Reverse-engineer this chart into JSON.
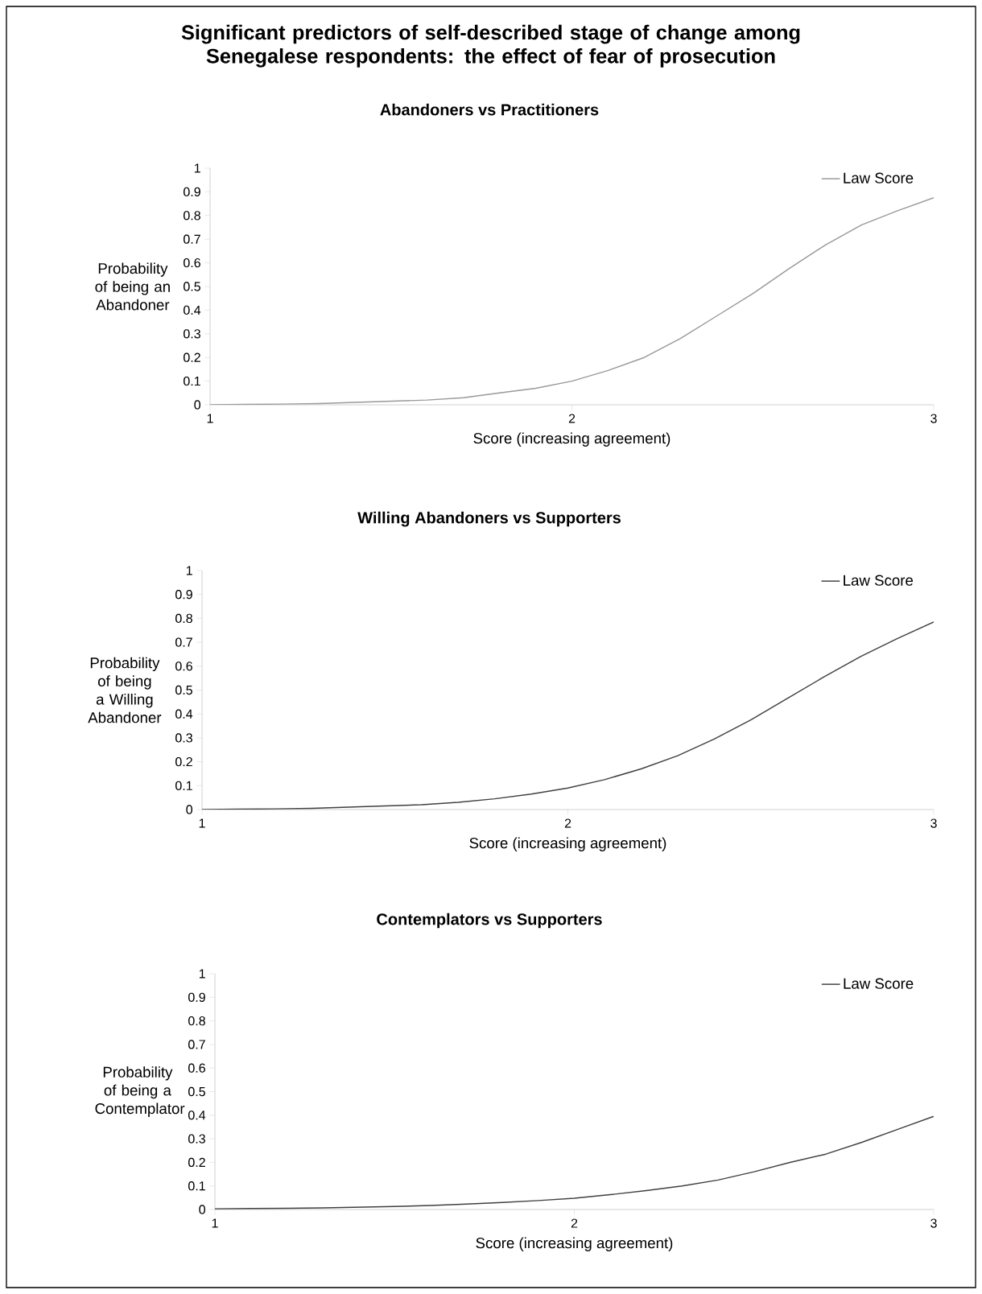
{
  "chart_data": [
    {
      "type": "line",
      "title": "Significant predictors of self-described stage of change among Senegalese respondents:  the effect of fear of prosecution",
      "subtitle": "Abandoners vs Practitioners",
      "xlabel": "Score (increasing agreement)",
      "ylabel": "Probability of being an Abandoner",
      "x": [
        1.0,
        1.1,
        1.2,
        1.3,
        1.4,
        1.5,
        1.6,
        1.7,
        1.8,
        1.9,
        2.0,
        2.1,
        2.2,
        2.3,
        2.4,
        2.5,
        2.6,
        2.7,
        2.8,
        2.9,
        3.0
      ],
      "series": [
        {
          "name": "Law Score",
          "color": "#999999",
          "values": [
            0,
            0.002,
            0.003,
            0.005,
            0.01,
            0.015,
            0.02,
            0.03,
            0.05,
            0.07,
            0.1,
            0.145,
            0.2,
            0.28,
            0.375,
            0.47,
            0.575,
            0.675,
            0.76,
            0.82,
            0.875
          ]
        }
      ],
      "xlim": [
        1,
        3
      ],
      "xticks": [
        1,
        2,
        3
      ],
      "ylim": [
        0,
        1
      ],
      "yticks": [
        0,
        0.1,
        0.2,
        0.3,
        0.4,
        0.5,
        0.6,
        0.7,
        0.8,
        0.9,
        1
      ],
      "legend": "top right"
    },
    {
      "type": "line",
      "title": "Willing Abandoners vs Supporters",
      "xlabel": "Score (increasing agreement)",
      "ylabel": "Probability of being a Willing Abandoner",
      "x": [
        1.0,
        1.1,
        1.2,
        1.3,
        1.4,
        1.5,
        1.6,
        1.7,
        1.8,
        1.9,
        2.0,
        2.1,
        2.2,
        2.3,
        2.4,
        2.5,
        2.6,
        2.7,
        2.8,
        2.9,
        3.0
      ],
      "series": [
        {
          "name": "Law Score",
          "color": "#404040",
          "values": [
            0,
            0.002,
            0.003,
            0.005,
            0.01,
            0.015,
            0.02,
            0.03,
            0.045,
            0.065,
            0.09,
            0.125,
            0.17,
            0.225,
            0.295,
            0.375,
            0.465,
            0.555,
            0.64,
            0.715,
            0.785
          ]
        }
      ],
      "xlim": [
        1,
        3
      ],
      "xticks": [
        1,
        2,
        3
      ],
      "ylim": [
        0,
        1
      ],
      "yticks": [
        0,
        0.1,
        0.2,
        0.3,
        0.4,
        0.5,
        0.6,
        0.7,
        0.8,
        0.9,
        1
      ],
      "legend": "top right"
    },
    {
      "type": "line",
      "title": "Contemplators vs Supporters",
      "xlabel": "Score (increasing agreement)",
      "ylabel": "Probability of being a Contemplator",
      "x": [
        1.0,
        1.1,
        1.2,
        1.3,
        1.4,
        1.5,
        1.6,
        1.7,
        1.8,
        1.9,
        2.0,
        2.1,
        2.2,
        2.3,
        2.4,
        2.5,
        2.6,
        2.7,
        2.8,
        2.9,
        3.0
      ],
      "series": [
        {
          "name": "Law Score",
          "color": "#404040",
          "values": [
            0.003,
            0.004,
            0.005,
            0.007,
            0.01,
            0.013,
            0.017,
            0.023,
            0.03,
            0.038,
            0.048,
            0.063,
            0.08,
            0.1,
            0.125,
            0.16,
            0.2,
            0.235,
            0.285,
            0.34,
            0.395
          ]
        }
      ],
      "xlim": [
        1,
        3
      ],
      "xticks": [
        1,
        2,
        3
      ],
      "ylim": [
        0,
        1
      ],
      "yticks": [
        0,
        0.1,
        0.2,
        0.3,
        0.4,
        0.5,
        0.6,
        0.7,
        0.8,
        0.9,
        1
      ],
      "legend": "top right"
    }
  ]
}
